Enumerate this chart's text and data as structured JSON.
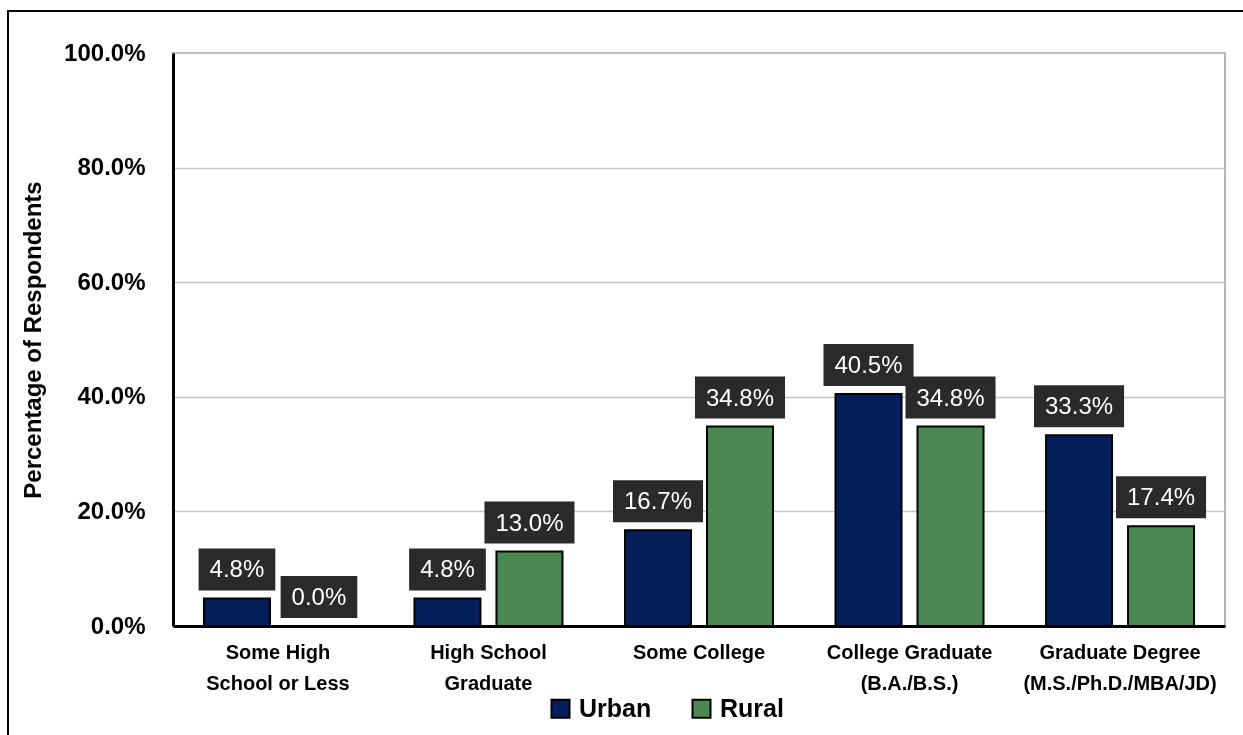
{
  "chart_data": {
    "type": "bar",
    "ylabel": "Percentage of Respondents",
    "categories": [
      "Some High\nSchool or Less",
      "High School\nGraduate",
      "Some College",
      "College Graduate\n(B.A./B.S.)",
      "Graduate Degree\n(M.S./Ph.D./MBA/JD)"
    ],
    "series": [
      {
        "name": "Urban",
        "color": "#041e5c",
        "values": [
          4.8,
          4.8,
          16.7,
          40.5,
          33.3
        ],
        "value_labels": [
          "4.8%",
          "4.8%",
          "16.7%",
          "40.5%",
          "33.3%"
        ]
      },
      {
        "name": "Rural",
        "color": "#4a8a52",
        "values": [
          0.0,
          13.0,
          34.8,
          34.8,
          17.4
        ],
        "value_labels": [
          "0.0%",
          "13.0%",
          "34.8%",
          "34.8%",
          "17.4%"
        ]
      }
    ],
    "ylim": [
      0,
      100
    ],
    "yticks": [
      {
        "value": 0,
        "label": "0.0%"
      },
      {
        "value": 20,
        "label": "20.0%"
      },
      {
        "value": 40,
        "label": "40.0%"
      },
      {
        "value": 60,
        "label": "60.0%"
      },
      {
        "value": 80,
        "label": "80.0%"
      },
      {
        "value": 100,
        "label": "100.0%"
      }
    ],
    "grid": "y",
    "legend": "bottom"
  }
}
